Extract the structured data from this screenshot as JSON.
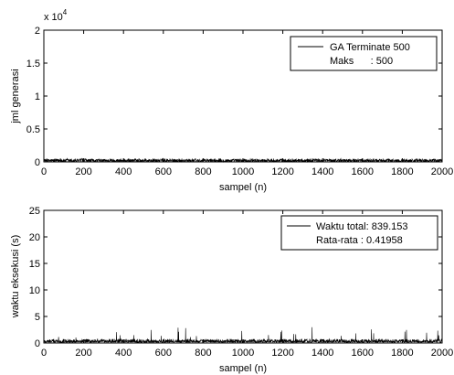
{
  "chart_data": [
    {
      "type": "line",
      "title": "",
      "xlabel": "sampel (n)",
      "ylabel": "jml generasi",
      "xlim": [
        0,
        2000
      ],
      "ylim": [
        0,
        2
      ],
      "y_exponent_label": "x 10",
      "y_exponent_power": "4",
      "x_ticks": [
        "0",
        "200",
        "400",
        "600",
        "800",
        "1000",
        "1200",
        "1400",
        "1600",
        "1800",
        "2000"
      ],
      "x_tick_values": [
        0,
        200,
        400,
        600,
        800,
        1000,
        1200,
        1400,
        1600,
        1800,
        2000
      ],
      "y_ticks": [
        "0",
        "0.5",
        "1",
        "1.5",
        "2"
      ],
      "y_tick_values": [
        0,
        0.5,
        1,
        1.5,
        2
      ],
      "grid": false,
      "legend_position": "top-right",
      "legend": [
        "GA Terminate 500",
        "Maks      : 500"
      ],
      "series": [
        {
          "name": "GA Terminate 500",
          "color": "#000000",
          "description_values": {
            "min": 0,
            "max": 0.05,
            "typical": 0.02,
            "count": 2000
          }
        }
      ]
    },
    {
      "type": "line",
      "title": "",
      "xlabel": "sampel (n)",
      "ylabel": "waktu eksekusi (s)",
      "xlim": [
        0,
        2000
      ],
      "ylim": [
        0,
        25
      ],
      "x_ticks": [
        "0",
        "200",
        "400",
        "600",
        "800",
        "1000",
        "1200",
        "1400",
        "1600",
        "1800",
        "2000"
      ],
      "x_tick_values": [
        0,
        200,
        400,
        600,
        800,
        1000,
        1200,
        1400,
        1600,
        1800,
        2000
      ],
      "y_ticks": [
        "0",
        "5",
        "10",
        "15",
        "20",
        "25"
      ],
      "y_tick_values": [
        0,
        5,
        10,
        15,
        20,
        25
      ],
      "grid": false,
      "legend_position": "top-right",
      "legend": [
        "Waktu total: 839.153",
        "Rata-rata : 0.41958"
      ],
      "series": [
        {
          "name": "Waktu total: 839.153",
          "color": "#000000",
          "description_values": {
            "min": 0,
            "max": 3,
            "mean": 0.41958,
            "count": 2000
          }
        }
      ]
    }
  ]
}
